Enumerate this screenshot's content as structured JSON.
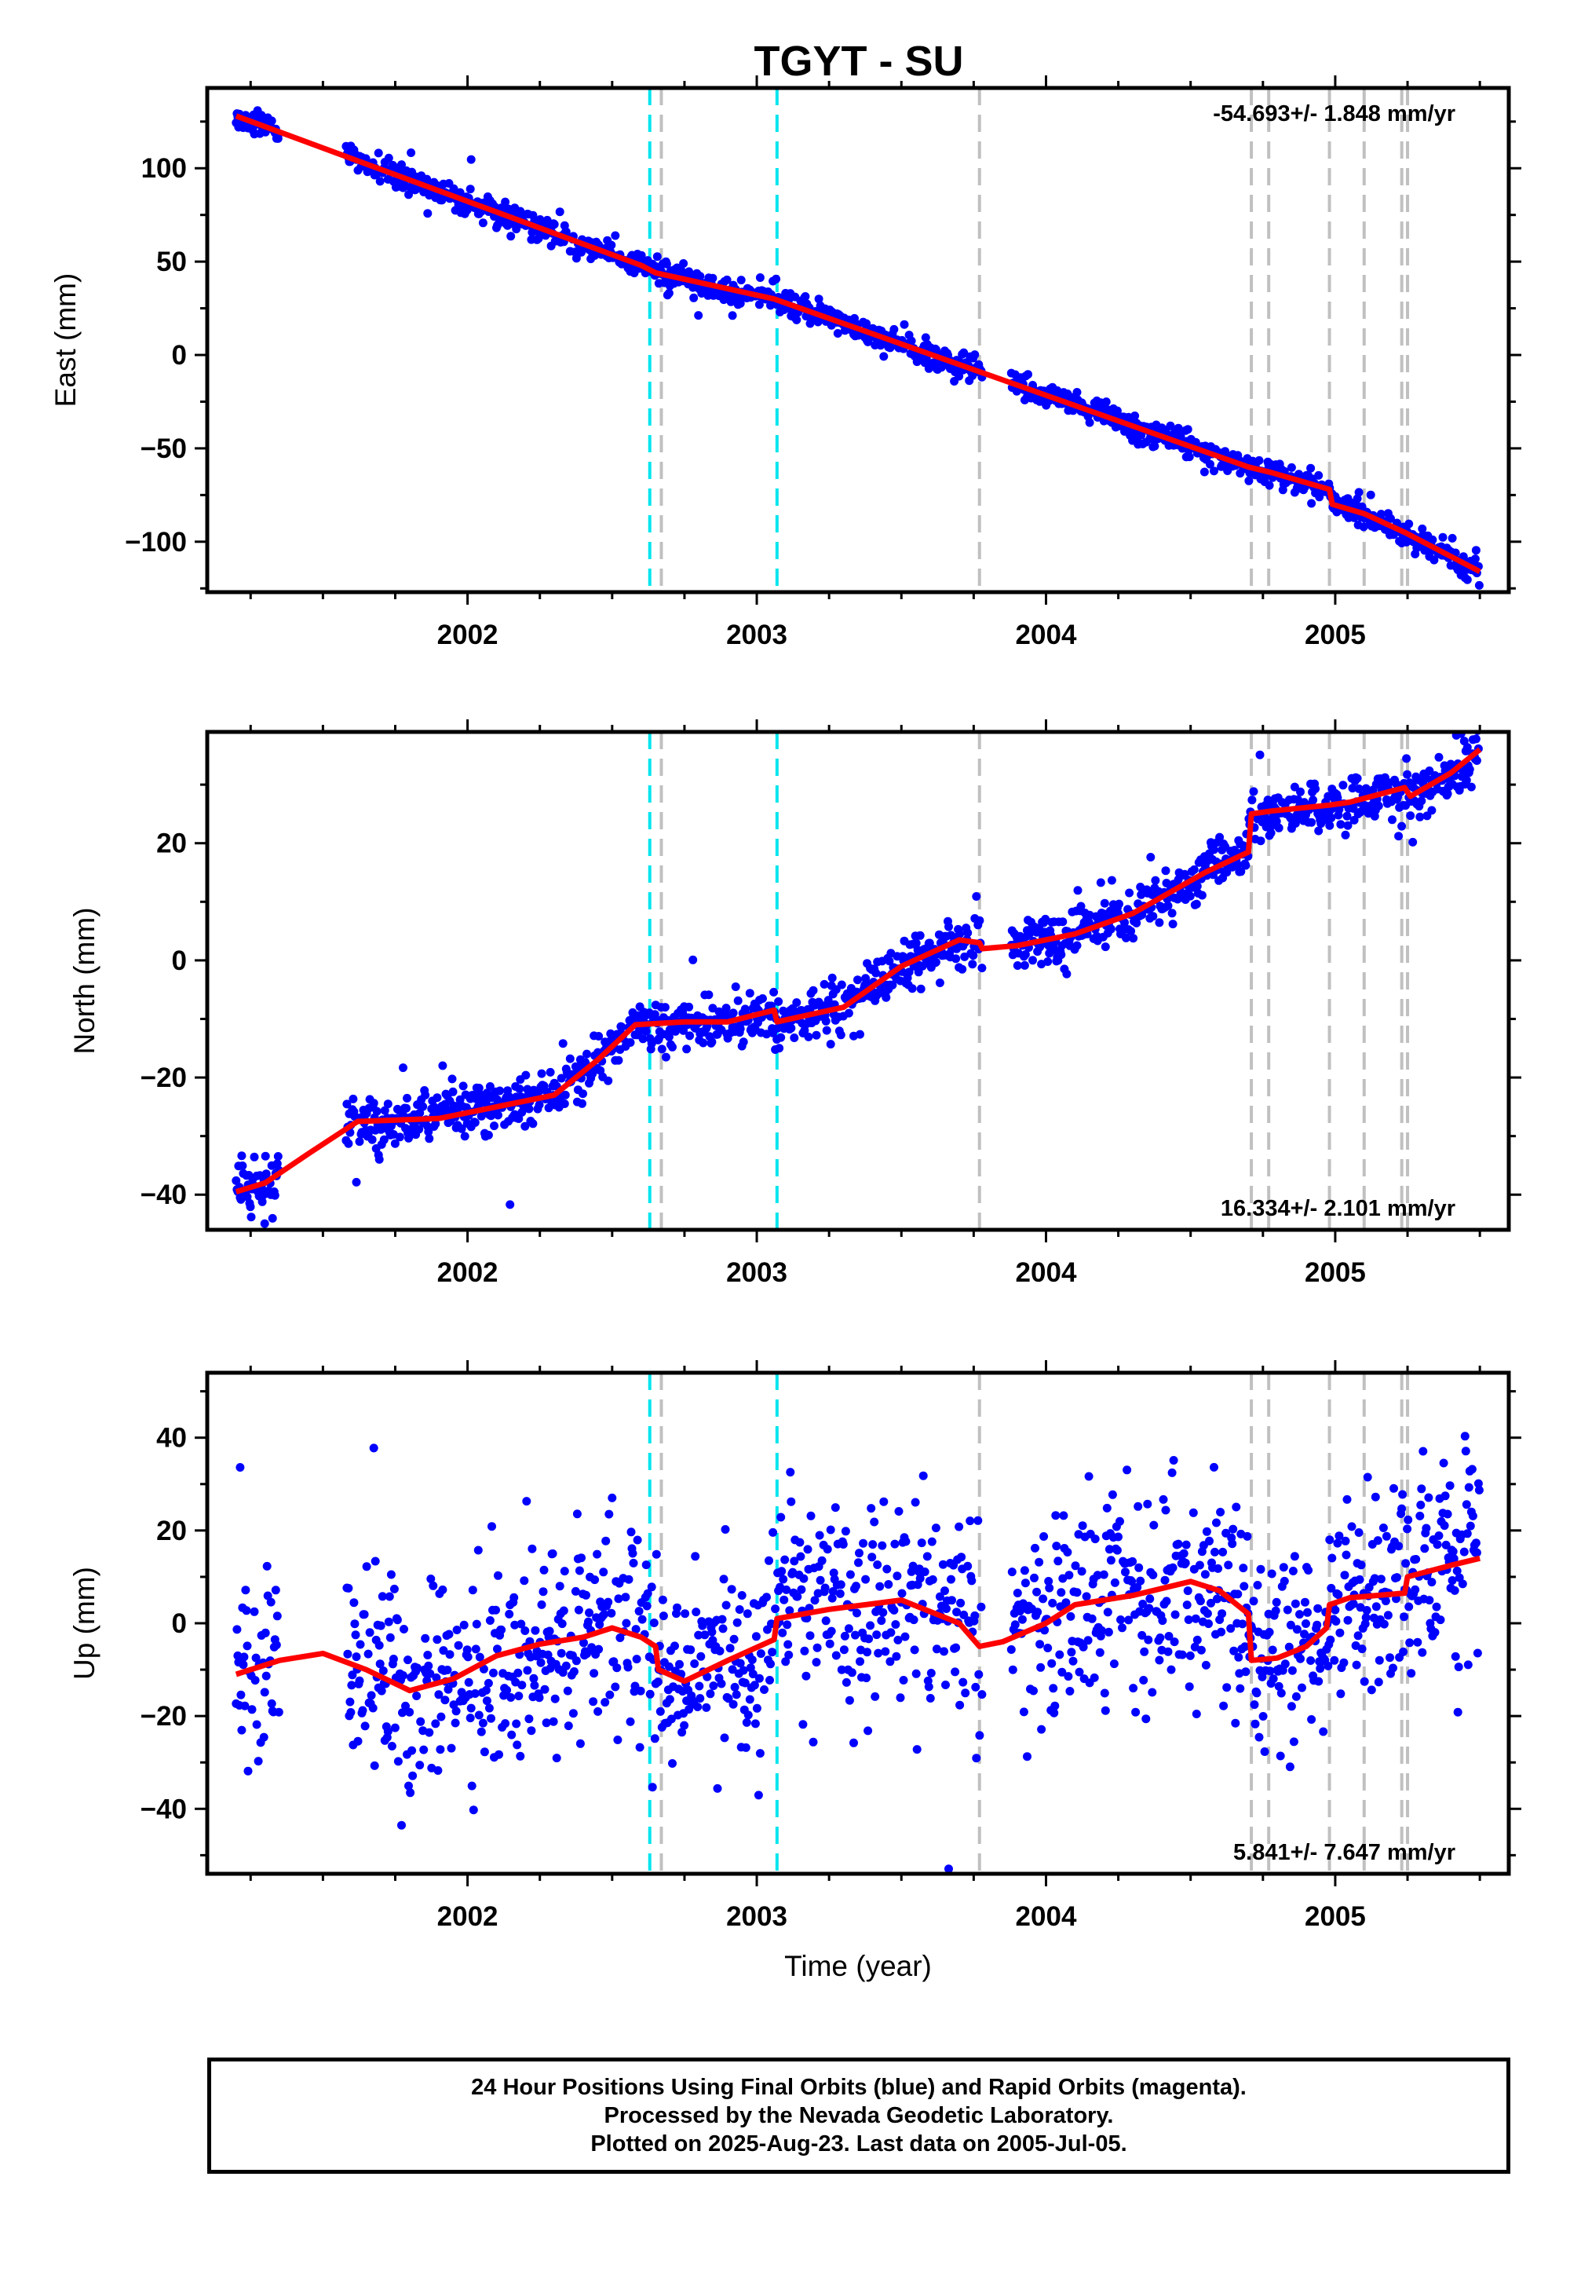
{
  "title": "TGYT - SU",
  "colors": {
    "points": "#0000ff",
    "model": "#ff0000",
    "antenna_change": "#00e5ee",
    "other_event": "#c0c0c0"
  },
  "chart_data": [
    {
      "type": "scatter",
      "name": "east",
      "ylabel": "East (mm)",
      "xlabel": "",
      "xlim": [
        2001.1,
        2005.6
      ],
      "ylim": [
        -127,
        143
      ],
      "yticks": [
        100,
        50,
        0,
        -50,
        -100
      ],
      "xticks": [
        2002,
        2003,
        2004,
        2005
      ],
      "rate_text": "-54.693+/- 1.848 mm/yr",
      "rate_position": "top-right",
      "model_line": [
        [
          2001.2,
          128
        ],
        [
          2002.6,
          48
        ],
        [
          2002.65,
          44
        ],
        [
          2003.06,
          30
        ],
        [
          2004.7,
          -60
        ],
        [
          2004.78,
          -63
        ],
        [
          2004.98,
          -72
        ],
        [
          2004.99,
          -80
        ],
        [
          2005.1,
          -85
        ],
        [
          2005.24,
          -95
        ],
        [
          2005.5,
          -116
        ]
      ],
      "data_segments": [
        {
          "x0": 2001.2,
          "x1": 2001.35
        },
        {
          "x0": 2001.58,
          "x1": 2003.78
        },
        {
          "x0": 2003.88,
          "x1": 2005.5
        }
      ],
      "noise_mm": 3.5
    },
    {
      "type": "scatter",
      "name": "north",
      "ylabel": "North (mm)",
      "xlabel": "",
      "xlim": [
        2001.1,
        2005.6
      ],
      "ylim": [
        -46,
        39
      ],
      "yticks": [
        20,
        0,
        -20,
        -40
      ],
      "xticks": [
        2002,
        2003,
        2004,
        2005
      ],
      "rate_text": "16.334+/- 2.101 mm/yr",
      "rate_position": "bottom-right",
      "model_line": [
        [
          2001.2,
          -39.5
        ],
        [
          2001.3,
          -38
        ],
        [
          2001.45,
          -33
        ],
        [
          2001.62,
          -27.5
        ],
        [
          2001.9,
          -27
        ],
        [
          2002.1,
          -25
        ],
        [
          2002.3,
          -23
        ],
        [
          2002.45,
          -17
        ],
        [
          2002.58,
          -11
        ],
        [
          2002.75,
          -10.5
        ],
        [
          2002.9,
          -10.5
        ],
        [
          2003.06,
          -8.5
        ],
        [
          2003.07,
          -10.5
        ],
        [
          2003.3,
          -8
        ],
        [
          2003.5,
          -1
        ],
        [
          2003.7,
          3.5
        ],
        [
          2003.77,
          3
        ],
        [
          2003.78,
          2
        ],
        [
          2003.9,
          2.5
        ],
        [
          2004.1,
          4.5
        ],
        [
          2004.3,
          8
        ],
        [
          2004.55,
          15
        ],
        [
          2004.7,
          18.5
        ],
        [
          2004.71,
          25
        ],
        [
          2004.78,
          25.5
        ],
        [
          2004.98,
          26.5
        ],
        [
          2005.05,
          27
        ],
        [
          2005.24,
          29.5
        ],
        [
          2005.26,
          28
        ],
        [
          2005.4,
          32
        ],
        [
          2005.5,
          36
        ]
      ],
      "data_segments": [
        {
          "x0": 2001.2,
          "x1": 2001.35
        },
        {
          "x0": 2001.58,
          "x1": 2003.78
        },
        {
          "x0": 2003.88,
          "x1": 2005.5
        }
      ],
      "noise_mm": 2.2
    },
    {
      "type": "scatter",
      "name": "up",
      "ylabel": "Up (mm)",
      "xlabel": "Time (year)",
      "xlim": [
        2001.1,
        2005.6
      ],
      "ylim": [
        -54,
        54
      ],
      "yticks": [
        40,
        20,
        0,
        -20,
        -40
      ],
      "xticks": [
        2002,
        2003,
        2004,
        2005
      ],
      "rate_text": "5.841+/- 7.647 mm/yr",
      "rate_position": "bottom-right",
      "model_line": [
        [
          2001.2,
          -11
        ],
        [
          2001.35,
          -8
        ],
        [
          2001.5,
          -6.5
        ],
        [
          2001.65,
          -10
        ],
        [
          2001.8,
          -14.5
        ],
        [
          2001.95,
          -12
        ],
        [
          2002.1,
          -7
        ],
        [
          2002.25,
          -4.5
        ],
        [
          2002.4,
          -3
        ],
        [
          2002.5,
          -1
        ],
        [
          2002.6,
          -3
        ],
        [
          2002.65,
          -5
        ],
        [
          2002.66,
          -10
        ],
        [
          2002.75,
          -12.5
        ],
        [
          2002.9,
          -8
        ],
        [
          2003.06,
          -3.5
        ],
        [
          2003.07,
          1
        ],
        [
          2003.25,
          3
        ],
        [
          2003.5,
          5
        ],
        [
          2003.7,
          0
        ],
        [
          2003.77,
          -5
        ],
        [
          2003.85,
          -4
        ],
        [
          2004.0,
          0
        ],
        [
          2004.1,
          4
        ],
        [
          2004.3,
          6
        ],
        [
          2004.5,
          9
        ],
        [
          2004.6,
          7
        ],
        [
          2004.7,
          2
        ],
        [
          2004.71,
          -8
        ],
        [
          2004.8,
          -7.5
        ],
        [
          2004.9,
          -5
        ],
        [
          2004.97,
          -1
        ],
        [
          2004.98,
          4
        ],
        [
          2005.05,
          5.5
        ],
        [
          2005.24,
          6.5
        ],
        [
          2005.25,
          10
        ],
        [
          2005.4,
          12.5
        ],
        [
          2005.5,
          14
        ]
      ],
      "data_segments": [
        {
          "x0": 2001.2,
          "x1": 2001.35
        },
        {
          "x0": 2001.58,
          "x1": 2003.78
        },
        {
          "x0": 2003.88,
          "x1": 2005.5
        }
      ],
      "noise_mm": 11
    }
  ],
  "event_lines": {
    "antenna_change": [
      2002.63,
      2003.07
    ],
    "other": [
      2002.67,
      2003.77,
      2004.71,
      2004.77,
      2004.98,
      2005.1,
      2005.23,
      2005.25
    ]
  },
  "footer": {
    "line1": "24 Hour Positions Using Final Orbits (blue) and Rapid Orbits (magenta).",
    "line2": "Processed by the Nevada Geodetic Laboratory.",
    "line3": "Plotted on 2025-Aug-23. Last data on 2005-Jul-05."
  }
}
